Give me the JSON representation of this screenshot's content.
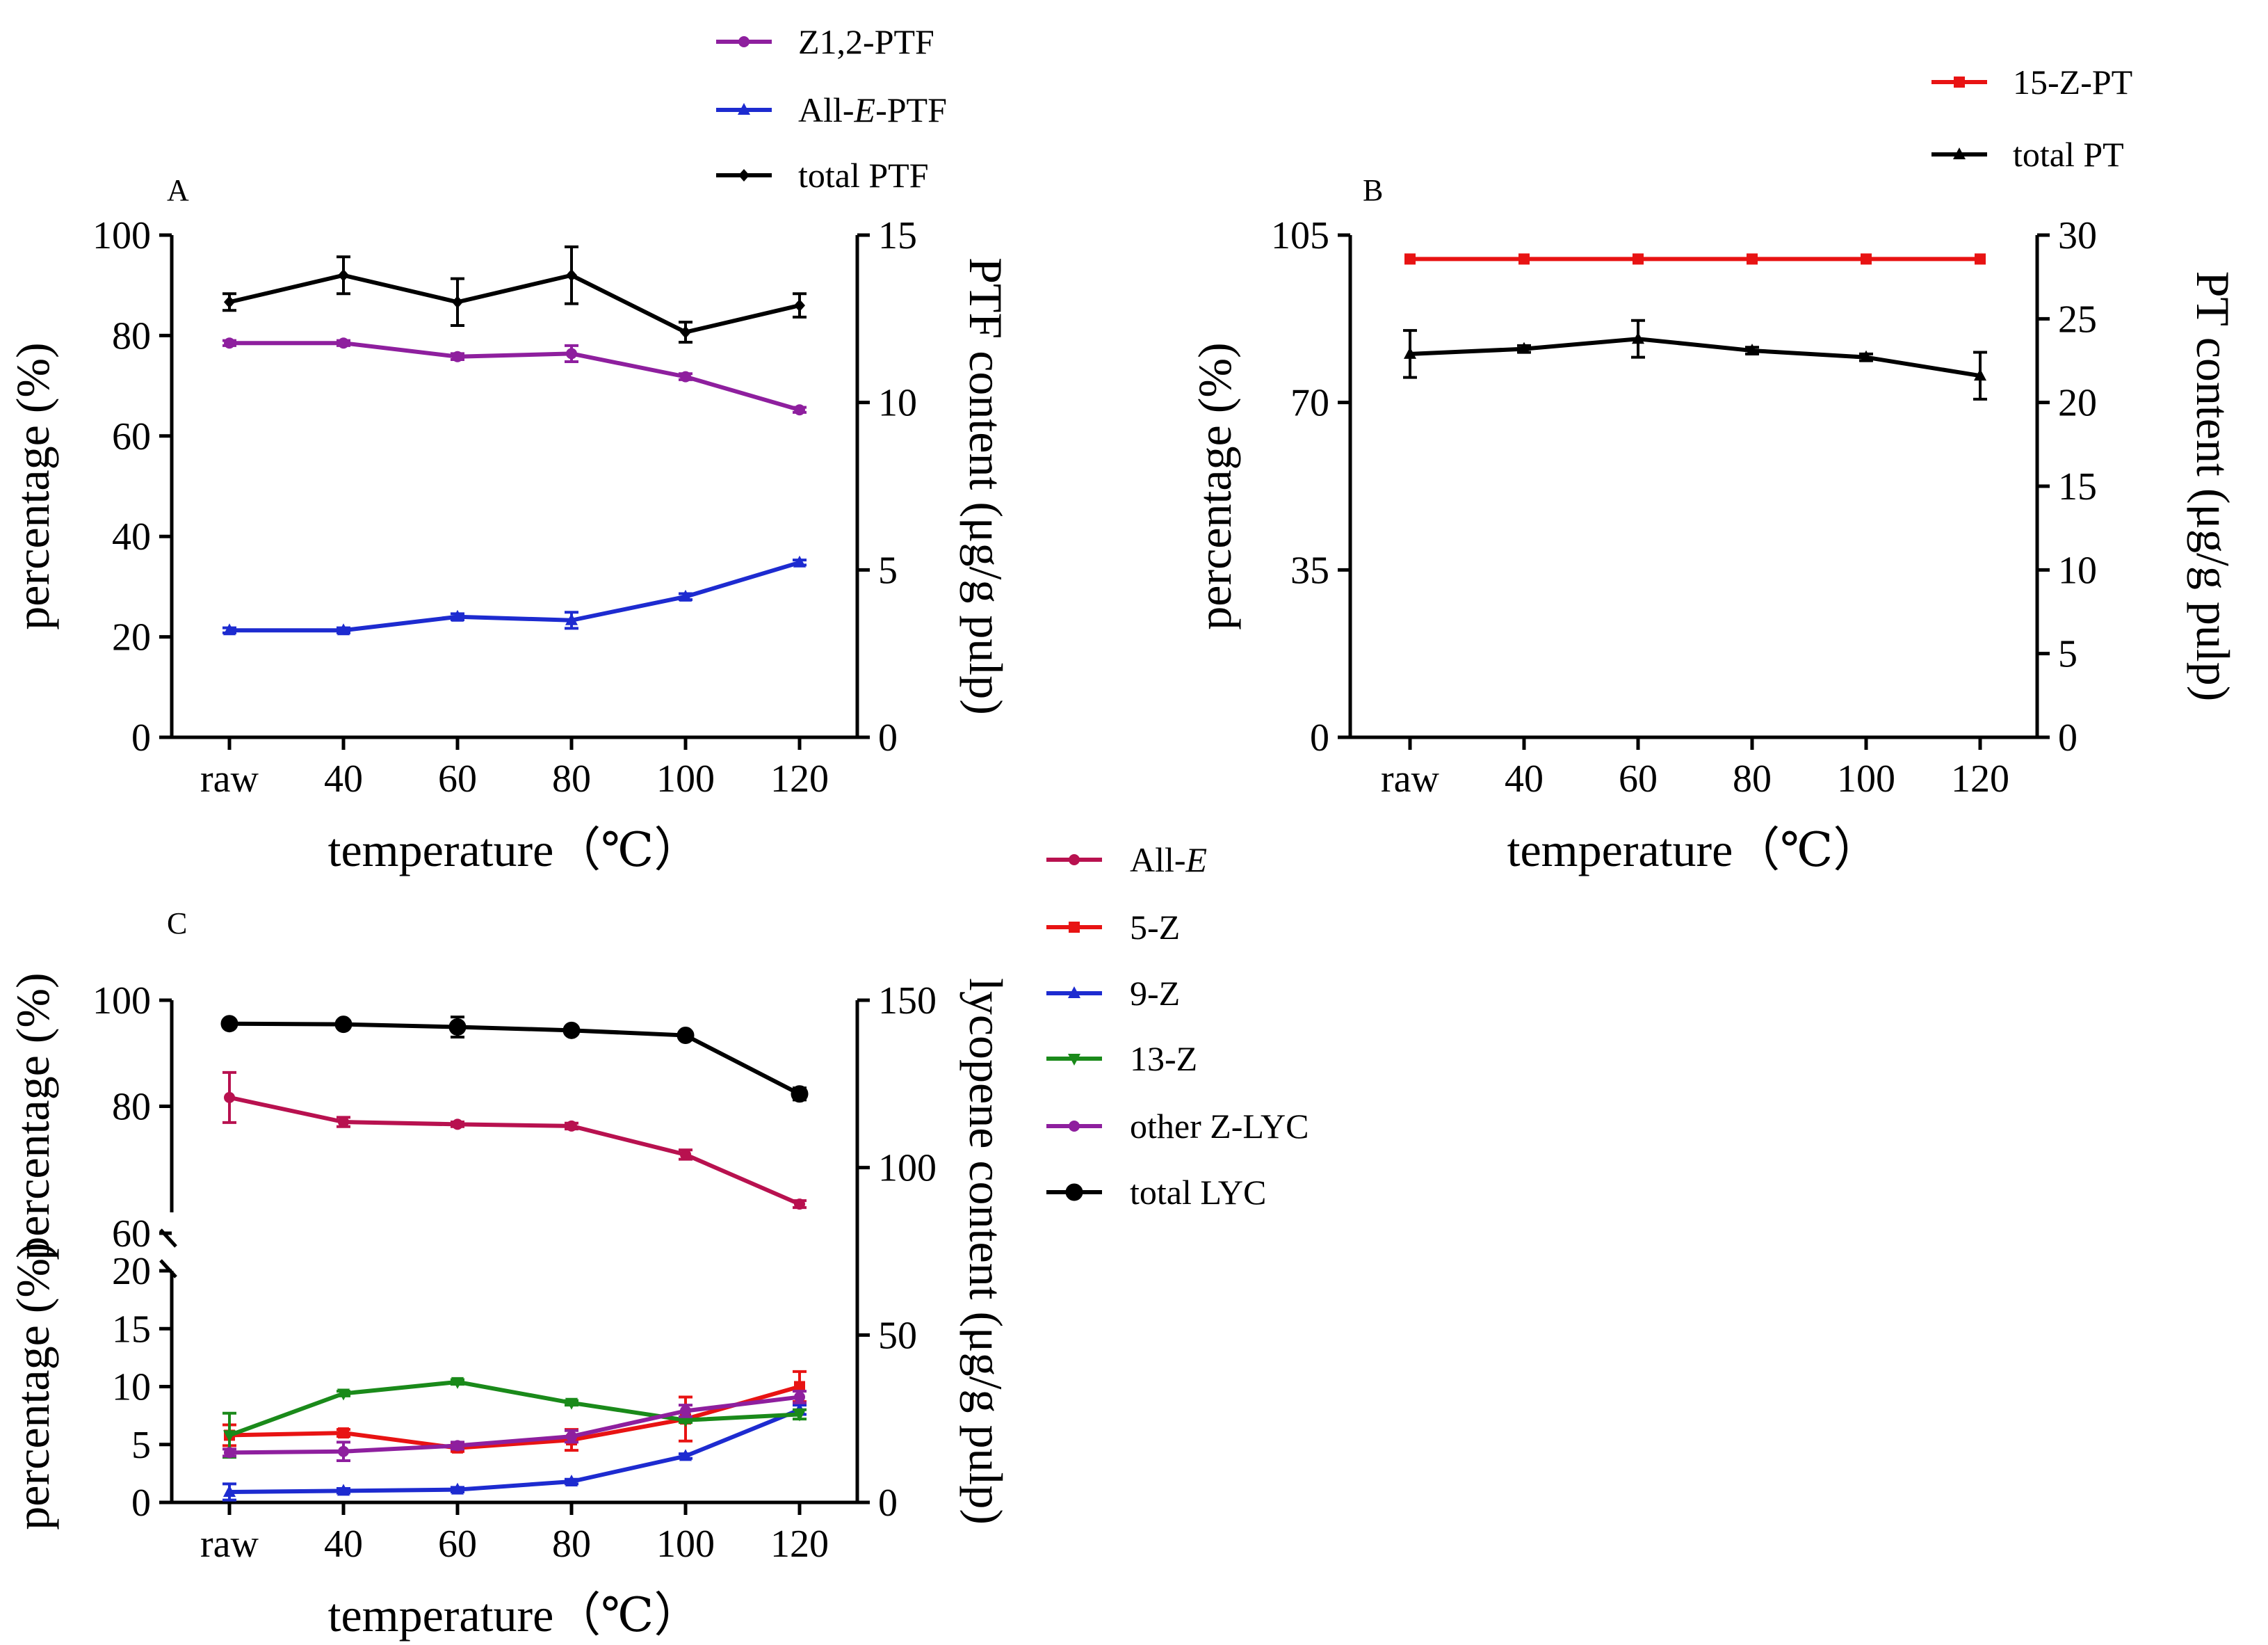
{
  "chart_data": [
    {
      "panel": "A",
      "type": "line",
      "xlabel": "temperature（℃）",
      "ylabel": "percentage (%)",
      "y2label": "PTF content (μg/g pulp)",
      "categories": [
        "raw",
        "40",
        "60",
        "80",
        "100",
        "120"
      ],
      "ylim": [
        0,
        100
      ],
      "yticks": [
        "0",
        "20",
        "40",
        "60",
        "80",
        "100"
      ],
      "y2lim": [
        0,
        15
      ],
      "y2ticks": [
        "0",
        "5",
        "10",
        "15"
      ],
      "series": [
        {
          "name": "Z1,2-PTF",
          "axis": "left",
          "color": "#8e1f9e",
          "marker": "circle",
          "values": [
            78.5,
            78.5,
            75.8,
            76.4,
            71.8,
            65.2
          ],
          "err": [
            0.5,
            0.5,
            0.6,
            1.6,
            0.6,
            0.5
          ]
        },
        {
          "name": "All-E-PTF",
          "axis": "left",
          "color": "#1d2bd0",
          "marker": "triangle",
          "values": [
            21.3,
            21.3,
            24.0,
            23.3,
            28.0,
            34.8
          ],
          "err": [
            0.5,
            0.5,
            0.6,
            1.6,
            0.6,
            0.5
          ]
        },
        {
          "name": "total PTF",
          "axis": "right",
          "color": "#000000",
          "marker": "diamond",
          "values": [
            13.0,
            13.8,
            13.0,
            13.8,
            12.1,
            12.9
          ],
          "err": [
            0.25,
            0.55,
            0.7,
            0.85,
            0.3,
            0.35
          ]
        }
      ],
      "legend": [
        {
          "text": "Z1,2-PTF"
        },
        {
          "pre": "All-",
          "it": "E",
          "post": "-PTF"
        },
        {
          "text": "total PTF"
        }
      ]
    },
    {
      "panel": "B",
      "type": "line",
      "xlabel": "temperature（℃）",
      "ylabel": "percentage (%)",
      "y2label": "PT content (μg/g pulp)",
      "categories": [
        "raw",
        "40",
        "60",
        "80",
        "100",
        "120"
      ],
      "ylim": [
        0,
        105
      ],
      "yticks": [
        "0",
        "35",
        "70",
        "105"
      ],
      "y2lim": [
        0,
        30
      ],
      "y2ticks": [
        "0",
        "5",
        "10",
        "15",
        "20",
        "25",
        "30"
      ],
      "series": [
        {
          "name": "15-Z-PT",
          "axis": "left",
          "color": "#e81313",
          "marker": "square",
          "values": [
            100,
            100,
            100,
            100,
            100,
            100
          ],
          "err": [
            0,
            0,
            0,
            0,
            0,
            0
          ]
        },
        {
          "name": "total PT",
          "axis": "right",
          "color": "#000000",
          "marker": "triangle",
          "values": [
            22.9,
            23.2,
            23.8,
            23.1,
            22.7,
            21.6
          ],
          "err": [
            1.4,
            0.2,
            1.1,
            0.2,
            0.2,
            1.4
          ]
        }
      ],
      "legend": [
        {
          "text": "15-Z-PT"
        },
        {
          "text": "total PT"
        }
      ]
    },
    {
      "panel": "C",
      "type": "line",
      "xlabel": "temperature（℃）",
      "ylabel_upper": "percentage (%)",
      "ylabel_lower": "percentage (%)",
      "y2label": "lycopene content (μg/g pulp)",
      "categories": [
        "raw",
        "40",
        "60",
        "80",
        "100",
        "120"
      ],
      "ylim_upper": [
        60,
        100
      ],
      "yticks_upper": [
        "60",
        "80",
        "100"
      ],
      "ylim_lower": [
        0,
        20
      ],
      "yticks_lower": [
        "0",
        "5",
        "10",
        "15",
        "20"
      ],
      "y2lim": [
        0,
        150
      ],
      "y2ticks": [
        "0",
        "50",
        "100",
        "150"
      ],
      "series": [
        {
          "name": "All-E",
          "axis": "left-upper",
          "color": "#b8114f",
          "marker": "circle",
          "values": [
            83.3,
            79.1,
            78.7,
            78.4,
            73.5,
            65.0
          ],
          "err": [
            4.3,
            0.8,
            0.4,
            0.5,
            0.8,
            0.6
          ]
        },
        {
          "name": "5-Z",
          "axis": "left-lower",
          "color": "#e81313",
          "marker": "square",
          "values": [
            5.8,
            6.0,
            4.7,
            5.4,
            7.2,
            10.0
          ],
          "err": [
            0.9,
            0.3,
            0.3,
            0.9,
            1.9,
            1.3
          ]
        },
        {
          "name": "9-Z",
          "axis": "left-lower",
          "color": "#1d2bd0",
          "marker": "triangle",
          "values": [
            0.9,
            1.0,
            1.1,
            1.8,
            4.0,
            8.0
          ],
          "err": [
            0.7,
            0.2,
            0.2,
            0.2,
            0.2,
            0.4
          ]
        },
        {
          "name": "13-Z",
          "axis": "left-lower",
          "color": "#1a8a1a",
          "marker": "triangle-down",
          "values": [
            5.8,
            9.4,
            10.4,
            8.6,
            7.1,
            7.6
          ],
          "err": [
            1.9,
            0.2,
            0.2,
            0.2,
            0.2,
            0.4
          ]
        },
        {
          "name": "other Z-LYC",
          "axis": "left-lower",
          "color": "#8e1f9e",
          "marker": "circle",
          "values": [
            4.3,
            4.4,
            4.9,
            5.7,
            7.9,
            9.1
          ],
          "err": [
            0.3,
            0.8,
            0.3,
            0.5,
            0.5,
            0.5
          ]
        },
        {
          "name": "total LYC",
          "axis": "right",
          "color": "#000000",
          "marker": "circle-large",
          "values": [
            143.0,
            142.8,
            142.0,
            141.0,
            139.5,
            122.0
          ],
          "err": [
            1.2,
            0.5,
            3.0,
            0.6,
            0.6,
            1.8
          ]
        }
      ],
      "legend": [
        {
          "pre": "All-",
          "it": "E",
          "post": ""
        },
        {
          "text": "5-Z"
        },
        {
          "text": "9-Z"
        },
        {
          "text": "13-Z"
        },
        {
          "text": "other Z-LYC"
        },
        {
          "text": "total LYC"
        }
      ]
    }
  ]
}
